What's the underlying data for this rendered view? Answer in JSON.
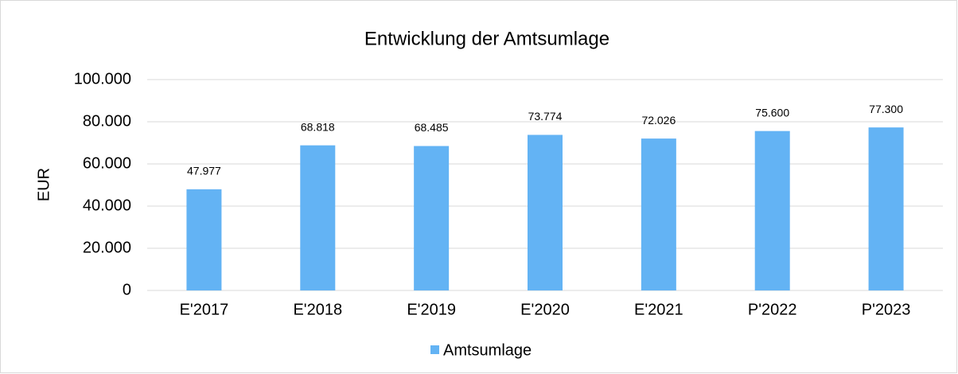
{
  "chart_data": {
    "type": "bar",
    "title": "Entwicklung der Amtsumlage",
    "y_label": "EUR",
    "categories": [
      "E'2017",
      "E'2018",
      "E'2019",
      "E'2020",
      "E'2021",
      "P'2022",
      "P'2023"
    ],
    "series": [
      {
        "name": "Amtsumlage",
        "color": "#63b3f4",
        "values": [
          47977,
          68818,
          68485,
          73774,
          72026,
          75600,
          77300
        ],
        "value_labels": [
          "47.977",
          "68.818",
          "68.485",
          "73.774",
          "72.026",
          "75.600",
          "77.300"
        ]
      }
    ],
    "ylim": [
      0,
      100000
    ],
    "yticks": [
      0,
      {
        "value": 20000,
        "label": "20.000"
      },
      {
        "value": 40000,
        "label": "40.000"
      },
      {
        "value": 60000,
        "label": "60.000"
      },
      {
        "value": 80000,
        "label": "80.000"
      },
      {
        "value": 100000,
        "label": "100.000"
      }
    ],
    "grid": true,
    "legend": "bottom"
  }
}
